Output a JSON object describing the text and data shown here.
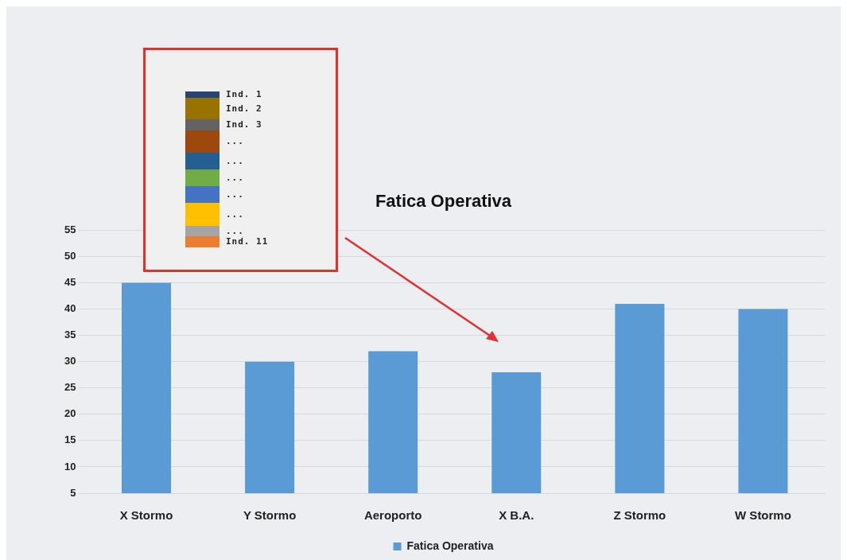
{
  "chart_data": [
    {
      "type": "bar",
      "title": "Fatica Operativa",
      "categories": [
        "X Stormo",
        "Y Stormo",
        "Aeroporto",
        "X B.A.",
        "Z Stormo",
        "W Stormo"
      ],
      "series": [
        {
          "name": "Fatica Operativa",
          "color": "#5b9bd5",
          "values": [
            45,
            30,
            32,
            28,
            41,
            40
          ]
        }
      ],
      "ylim": [
        5,
        55
      ],
      "yticks": [
        5,
        10,
        15,
        20,
        25,
        30,
        35,
        40,
        45,
        50,
        55
      ],
      "grid": "y",
      "legend": "bottom"
    },
    {
      "type": "other",
      "annotations": [
        "Ind. 1",
        "Ind. 2",
        "Ind. 3",
        "...",
        "...",
        "...",
        "...",
        "...",
        "...",
        "Ind. 11"
      ]
    }
  ]
}
